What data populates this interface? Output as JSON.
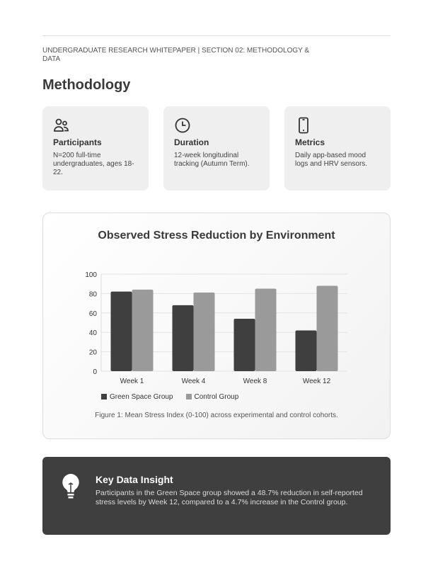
{
  "header": {
    "breadcrumb": "Undergraduate Research Whitepaper | Section 02: Methodology & Data",
    "title": "Methodology"
  },
  "cards": [
    {
      "icon": "users-icon",
      "title": "Participants",
      "text": "N=200 full-time undergraduates, ages 18-22."
    },
    {
      "icon": "clock-icon",
      "title": "Duration",
      "text": "12-week longitudinal tracking (Autumn Term)."
    },
    {
      "icon": "phone-icon",
      "title": "Metrics",
      "text": "Daily app-based mood logs and HRV sensors."
    }
  ],
  "chart_data": {
    "type": "bar",
    "title": "Observed Stress Reduction by Environment",
    "categories": [
      "Week 1",
      "Week 4",
      "Week 8",
      "Week 12"
    ],
    "series": [
      {
        "name": "Green Space Group",
        "color": "#3f3f3f",
        "values": [
          82,
          68,
          54,
          42
        ]
      },
      {
        "name": "Control Group",
        "color": "#9a9a9a",
        "values": [
          84,
          81,
          85,
          88
        ]
      }
    ],
    "ylim": [
      0,
      100
    ],
    "yticks": [
      0,
      20,
      40,
      60,
      80,
      100
    ],
    "grid": true,
    "legend": "bottom-left",
    "caption": "Figure 1: Mean Stress Index (0-100) across experimental and control cohorts."
  },
  "insight": {
    "icon": "lightbulb-icon",
    "title": "Key Data Insight",
    "text": "Participants in the Green Space group showed a 48.7% reduction in self-reported stress levels by Week 12, compared to a 4.7% increase in the Control group."
  }
}
